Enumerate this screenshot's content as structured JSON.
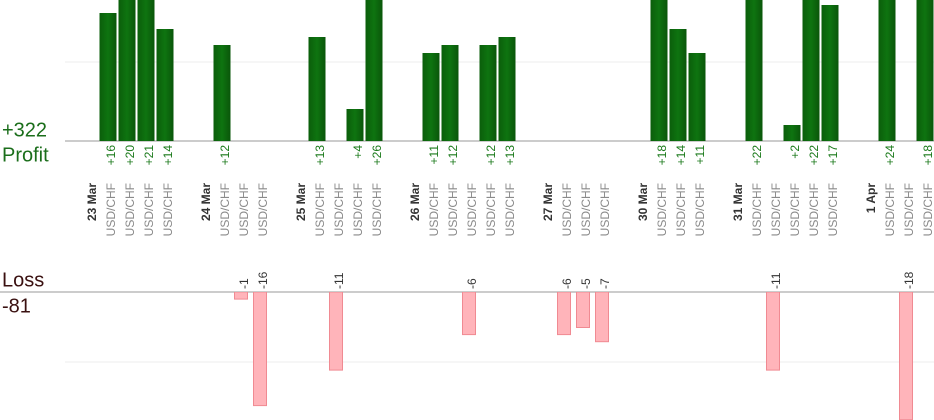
{
  "summary": {
    "profit_title": "Profit",
    "profit_total": {
      "value": 322,
      "label": "+322"
    },
    "loss_title": "Loss",
    "loss_total": -81
  },
  "days": [
    {
      "date": "23 Mar",
      "trades": [
        {
          "pair": "USD/CHF",
          "pnl": 16,
          "label": "+16"
        },
        {
          "pair": "USD/CHF",
          "pnl": 20,
          "label": "+20"
        },
        {
          "pair": "USD/CHF",
          "pnl": 21,
          "label": "+21"
        },
        {
          "pair": "USD/CHF",
          "pnl": 14,
          "label": "+14"
        }
      ]
    },
    {
      "date": "24 Mar",
      "trades": [
        {
          "pair": "USD/CHF",
          "pnl": 12,
          "label": "+12"
        },
        {
          "pair": "USD/CHF",
          "pnl": -1
        },
        {
          "pair": "USD/CHF",
          "pnl": -16
        }
      ]
    },
    {
      "date": "25 Mar",
      "trades": [
        {
          "pair": "USD/CHF",
          "pnl": 13,
          "label": "+13"
        },
        {
          "pair": "USD/CHF",
          "pnl": -11
        },
        {
          "pair": "USD/CHF",
          "pnl": 4,
          "label": "+4"
        },
        {
          "pair": "USD/CHF",
          "pnl": 26,
          "label": "+26"
        }
      ]
    },
    {
      "date": "26 Mar",
      "trades": [
        {
          "pair": "USD/CHF",
          "pnl": 11,
          "label": "+11"
        },
        {
          "pair": "USD/CHF",
          "pnl": 12,
          "label": "+12"
        },
        {
          "pair": "USD/CHF",
          "pnl": -6
        },
        {
          "pair": "USD/CHF",
          "pnl": 12,
          "label": "+12"
        },
        {
          "pair": "USD/CHF",
          "pnl": 13,
          "label": "+13"
        }
      ]
    },
    {
      "date": "27 Mar",
      "trades": [
        {
          "pair": "USD/CHF",
          "pnl": -6
        },
        {
          "pair": "USD/CHF",
          "pnl": -5
        },
        {
          "pair": "USD/CHF",
          "pnl": -7
        }
      ]
    },
    {
      "date": "30 Mar",
      "trades": [
        {
          "pair": "USD/CHF",
          "pnl": 18,
          "label": "+18"
        },
        {
          "pair": "USD/CHF",
          "pnl": 14,
          "label": "+14"
        },
        {
          "pair": "USD/CHF",
          "pnl": 11,
          "label": "+11"
        }
      ]
    },
    {
      "date": "31 Mar",
      "trades": [
        {
          "pair": "USD/CHF",
          "pnl": 22,
          "label": "+22"
        },
        {
          "pair": "USD/CHF",
          "pnl": -11
        },
        {
          "pair": "USD/CHF",
          "pnl": 2,
          "label": "+2"
        },
        {
          "pair": "USD/CHF",
          "pnl": 22,
          "label": "+22"
        },
        {
          "pair": "USD/CHF",
          "pnl": 17,
          "label": "+17"
        }
      ]
    },
    {
      "date": "1 Apr",
      "trades": [
        {
          "pair": "USD/CHF",
          "pnl": 24,
          "label": "+24"
        },
        {
          "pair": "USD/CHF",
          "pnl": -18
        },
        {
          "pair": "USD/CHF",
          "pnl": 18,
          "label": "+18"
        }
      ]
    }
  ]
}
